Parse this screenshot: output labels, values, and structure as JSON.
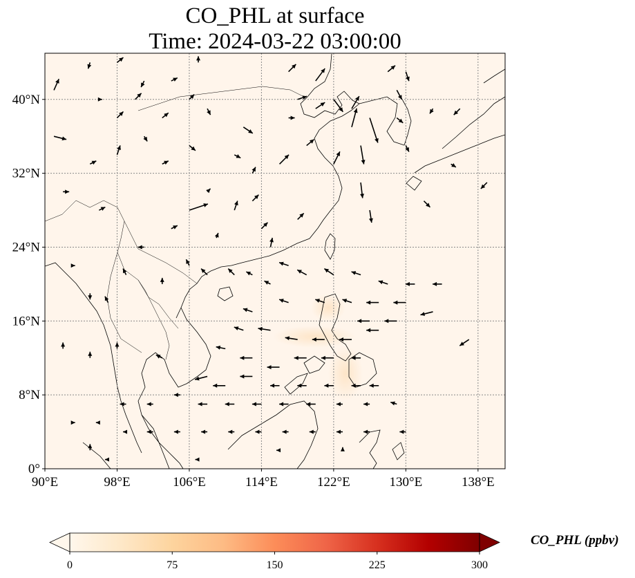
{
  "title_line1": "CO_PHL at surface",
  "title_line2": "Time: 2024-03-22 03:00:00",
  "map": {
    "extent": {
      "lon_min": 90,
      "lon_max": 141,
      "lat_min": 0,
      "lat_max": 45
    },
    "lon_ticks": [
      {
        "value": 90,
        "label": "90°E"
      },
      {
        "value": 98,
        "label": "98°E"
      },
      {
        "value": 106,
        "label": "106°E"
      },
      {
        "value": 114,
        "label": "114°E"
      },
      {
        "value": 122,
        "label": "122°E"
      },
      {
        "value": 130,
        "label": "130°E"
      },
      {
        "value": 138,
        "label": "138°E"
      }
    ],
    "lat_ticks": [
      {
        "value": 0,
        "label": "0°"
      },
      {
        "value": 8,
        "label": "8°N"
      },
      {
        "value": 16,
        "label": "16°N"
      },
      {
        "value": 24,
        "label": "24°N"
      },
      {
        "value": 32,
        "label": "32°N"
      },
      {
        "value": 40,
        "label": "40°N"
      }
    ],
    "gridlines": true,
    "background_color": "#fff5eb",
    "land_outline_color": "#000000"
  },
  "colorbar": {
    "label": "CO_PHL (ppbv)",
    "colormap": "OrRd",
    "min": 0,
    "max": 300,
    "extend": "both",
    "ticks": [
      {
        "value": 0,
        "label": "0"
      },
      {
        "value": 75,
        "label": "75"
      },
      {
        "value": 150,
        "label": "150"
      },
      {
        "value": 225,
        "label": "225"
      },
      {
        "value": 300,
        "label": "300"
      }
    ],
    "stops": [
      "#fff7ec",
      "#fee8c8",
      "#fdd49e",
      "#fdbb84",
      "#fc8d59",
      "#ef6548",
      "#d7301f",
      "#b30000",
      "#7f0000"
    ]
  },
  "wind_vectors": [
    [
      91,
      41,
      0.8,
      1.8
    ],
    [
      91,
      36,
      2,
      -0.5
    ],
    [
      92,
      30,
      1,
      0
    ],
    [
      95,
      44,
      -0.3,
      -1
    ],
    [
      95,
      33,
      1,
      0.5
    ],
    [
      96,
      28,
      1,
      0.5
    ],
    [
      96,
      40,
      0.5,
      0
    ],
    [
      98,
      38,
      1,
      1
    ],
    [
      98,
      34,
      0.5,
      1.5
    ],
    [
      98,
      44,
      1,
      0.8
    ],
    [
      100,
      40,
      1,
      1
    ],
    [
      101,
      36,
      0.5,
      -0.8
    ],
    [
      101,
      42,
      -0.5,
      -1
    ],
    [
      103,
      38,
      1,
      0.8
    ],
    [
      103,
      33,
      1,
      0.5
    ],
    [
      104,
      42,
      1,
      0.5
    ],
    [
      104,
      26,
      1,
      0.5
    ],
    [
      106,
      40,
      0.8,
      0.8
    ],
    [
      106,
      35,
      1,
      -0.8
    ],
    [
      106,
      28,
      3,
      1
    ],
    [
      107,
      44,
      0,
      1
    ],
    [
      108,
      39,
      0.5,
      -1
    ],
    [
      108,
      30,
      0.5,
      0.5
    ],
    [
      109,
      25,
      0.3,
      0.8
    ],
    [
      111,
      34,
      1,
      -0.5
    ],
    [
      111,
      28,
      0.5,
      1.5
    ],
    [
      112,
      37,
      1.5,
      -1
    ],
    [
      113,
      32,
      0.5,
      1
    ],
    [
      113,
      29,
      1,
      1
    ],
    [
      114,
      26,
      1,
      1
    ],
    [
      115,
      24,
      0.3,
      1.5
    ],
    [
      116,
      33,
      1.5,
      1.5
    ],
    [
      117,
      38,
      1,
      0
    ],
    [
      117,
      43,
      1.2,
      1.2
    ],
    [
      118,
      40,
      1.5,
      0.5
    ],
    [
      118,
      27,
      1,
      1
    ],
    [
      119,
      35,
      1.2,
      1
    ],
    [
      120,
      42,
      1.5,
      2
    ],
    [
      120,
      39,
      1.5,
      1
    ],
    [
      122,
      40,
      1.5,
      -2
    ],
    [
      122,
      33,
      1,
      2
    ],
    [
      124,
      37,
      0.8,
      3
    ],
    [
      124,
      39,
      1.2,
      2
    ],
    [
      125,
      35,
      0.5,
      -3
    ],
    [
      125,
      31,
      0.3,
      -2.5
    ],
    [
      126,
      38,
      1.3,
      -4
    ],
    [
      126,
      28,
      0.3,
      -2
    ],
    [
      128,
      43,
      1.2,
      1
    ],
    [
      129,
      41,
      0.8,
      -1.5
    ],
    [
      129,
      38,
      1,
      -0.8
    ],
    [
      130,
      43,
      0.5,
      -1.5
    ],
    [
      130,
      35,
      0.5,
      -1
    ],
    [
      132,
      29,
      1,
      -1
    ],
    [
      133,
      39,
      -0.5,
      -0.8
    ],
    [
      135,
      33,
      0.8,
      -0.5
    ],
    [
      136,
      39,
      -1,
      -1
    ],
    [
      139,
      31,
      -1,
      -1
    ],
    [
      93,
      22,
      0.5,
      0
    ],
    [
      95,
      19,
      0,
      -1
    ],
    [
      97,
      18,
      -0.5,
      1
    ],
    [
      99,
      21,
      -0.5,
      1
    ],
    [
      101,
      24,
      -1,
      0
    ],
    [
      103,
      20,
      0,
      1
    ],
    [
      106,
      22,
      -0.5,
      1
    ],
    [
      108,
      21,
      -1,
      1
    ],
    [
      111,
      21,
      -1,
      1
    ],
    [
      113,
      21,
      -1,
      0.5
    ],
    [
      115,
      20,
      -1,
      0.5
    ],
    [
      117,
      22,
      -1.5,
      0.5
    ],
    [
      119,
      21,
      -1.5,
      0.8
    ],
    [
      122,
      21,
      -1.5,
      1
    ],
    [
      125,
      21,
      -1.5,
      0.5
    ],
    [
      128,
      20,
      -1.5,
      0.5
    ],
    [
      131,
      20,
      -1.5,
      0
    ],
    [
      134,
      20,
      -1.5,
      0
    ],
    [
      117,
      18,
      -1.5,
      0.5
    ],
    [
      121,
      18,
      -1.5,
      0.5
    ],
    [
      124,
      18,
      -1.5,
      0.5
    ],
    [
      127,
      18,
      -2,
      0
    ],
    [
      130,
      18,
      -2,
      0
    ],
    [
      113,
      17,
      -1.5,
      0.5
    ],
    [
      126,
      16,
      -2,
      0
    ],
    [
      129,
      16,
      -2,
      0
    ],
    [
      133,
      17,
      -2,
      -0.5
    ],
    [
      112,
      15,
      -1.5,
      0.5
    ],
    [
      115,
      15,
      -2,
      0.3
    ],
    [
      118,
      14,
      -2,
      0.3
    ],
    [
      121,
      14,
      -2,
      0
    ],
    [
      124,
      14,
      -2,
      0
    ],
    [
      127,
      15,
      -2,
      0
    ],
    [
      137,
      14,
      -1.5,
      -1
    ],
    [
      110,
      13,
      -1.5,
      0.3
    ],
    [
      113,
      12,
      -2,
      0
    ],
    [
      116,
      11,
      -2,
      0
    ],
    [
      119,
      12,
      -2,
      0
    ],
    [
      122,
      12,
      -2,
      0
    ],
    [
      125,
      12,
      -1.5,
      0
    ],
    [
      92,
      13,
      0,
      1
    ],
    [
      95,
      12,
      0,
      1
    ],
    [
      98,
      13,
      0,
      1
    ],
    [
      103,
      12,
      -1,
      0.5
    ],
    [
      108,
      10,
      -2,
      -0.5
    ],
    [
      110,
      9,
      -2,
      0
    ],
    [
      113,
      10,
      -2,
      0
    ],
    [
      116,
      9,
      -1.5,
      0
    ],
    [
      119,
      9,
      -1.5,
      0
    ],
    [
      122,
      9,
      -1.5,
      0
    ],
    [
      125,
      9,
      -1.5,
      0
    ],
    [
      127,
      9,
      -1.5,
      0
    ],
    [
      99,
      7,
      -1,
      0
    ],
    [
      102,
      7,
      -1,
      0
    ],
    [
      105,
      8,
      -1,
      0
    ],
    [
      108,
      7,
      -1.5,
      0
    ],
    [
      111,
      7,
      -1.5,
      0
    ],
    [
      114,
      7,
      -1.5,
      0
    ],
    [
      117,
      7,
      -1.5,
      0
    ],
    [
      120,
      7,
      -1.5,
      0
    ],
    [
      123,
      7,
      -1,
      0
    ],
    [
      126,
      7,
      -1,
      0
    ],
    [
      129,
      7,
      -1,
      0.3
    ],
    [
      93,
      5,
      0.5,
      0
    ],
    [
      96,
      5,
      -0.5,
      0
    ],
    [
      99,
      4,
      -0.5,
      0
    ],
    [
      102,
      4,
      -1,
      0
    ],
    [
      105,
      4,
      -1,
      0
    ],
    [
      108,
      4,
      -1,
      0
    ],
    [
      111,
      4,
      -1,
      0
    ],
    [
      114,
      4,
      -1,
      0
    ],
    [
      117,
      4,
      -1,
      0
    ],
    [
      120,
      4,
      -1,
      0
    ],
    [
      123,
      4,
      -1,
      0
    ],
    [
      126,
      4,
      -1,
      0
    ],
    [
      130,
      4,
      -1,
      0
    ],
    [
      95,
      2,
      0,
      1
    ],
    [
      97,
      1,
      -0.5,
      0
    ],
    [
      107,
      1,
      -0.5,
      0
    ],
    [
      116,
      2,
      -0.5,
      0
    ],
    [
      123,
      2,
      0,
      0.5
    ]
  ]
}
